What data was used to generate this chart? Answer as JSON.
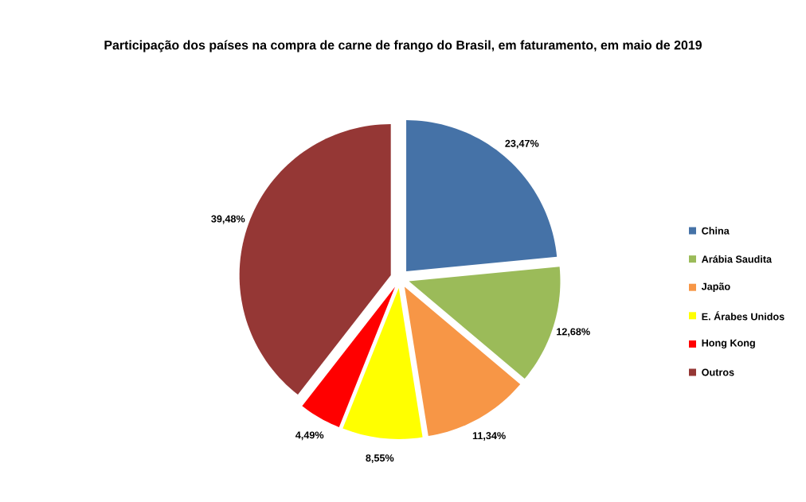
{
  "chart_data": {
    "type": "pie",
    "title": "Participação dos países na compra de carne de frango do Brasil, em faturamento, em maio de 2019",
    "categories": [
      "China",
      "Arábia Saudita",
      "Japão",
      "E. Árabes Unidos",
      "Hong Kong",
      "Outros"
    ],
    "values": [
      23.47,
      12.68,
      11.34,
      8.55,
      4.49,
      39.48
    ],
    "colors": [
      "#4572a7",
      "#9bbb59",
      "#f79646",
      "#ffff00",
      "#ff0000",
      "#953735"
    ],
    "value_labels": [
      "23,47%",
      "12,68%",
      "11,34%",
      "8,55%",
      "4,49%",
      "39,48%"
    ],
    "legend": "right"
  }
}
